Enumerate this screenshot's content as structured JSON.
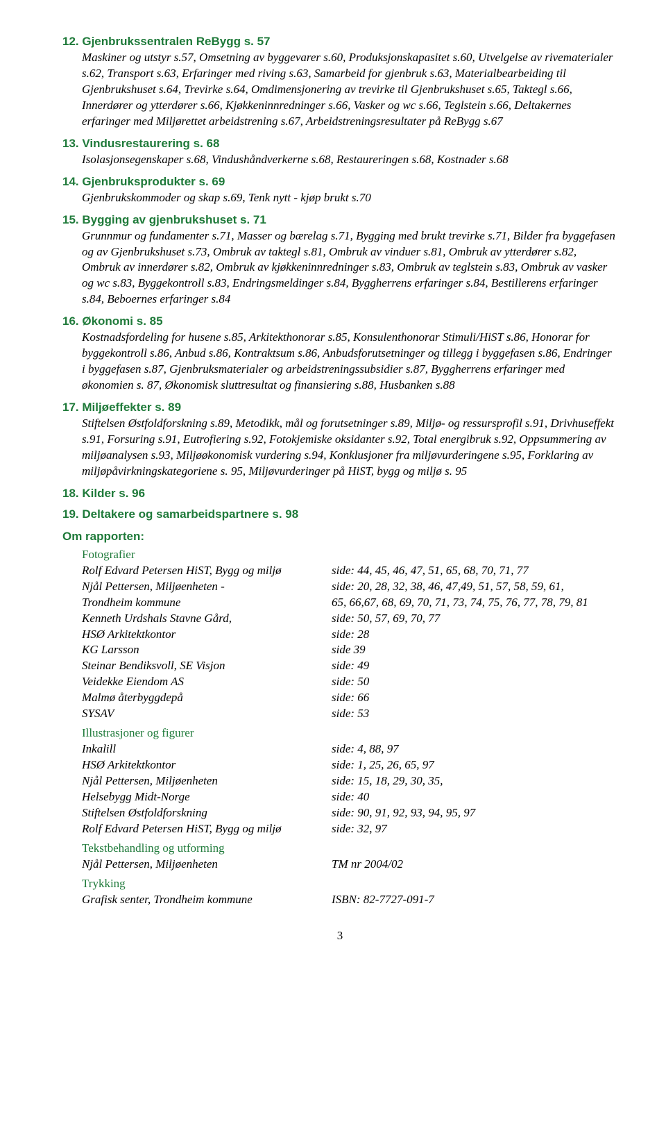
{
  "sections": [
    {
      "heading": "12. Gjenbrukssentralen ReBygg s. 57",
      "body": "Maskiner og utstyr s.57, Omsetning av byggevarer s.60, Produksjonskapasitet s.60, Utvelgelse av rivematerialer s.62, Transport s.63, Erfaringer med riving s.63, Samarbeid for gjenbruk s.63, Materialbearbeiding til Gjenbrukshuset s.64, Trevirke s.64, Omdimensjonering av trevirke til Gjenbrukshuset s.65, Taktegl s.66, Innerdører og ytterdører s.66, Kjøkken­innredninger s.66, Vasker og wc s.66, Teglstein s.66, Deltakernes erfaringer med Miljørettet arbeidstrening s.67, Arbeidstreningsresultater på ReBygg s.67"
    },
    {
      "heading": "13. Vindusrestaurering s. 68",
      "body": "Isolasjonsegenskaper s.68, Vindushåndverkerne s.68, Restaureringen s.68, Kostnader s.68"
    },
    {
      "heading": "14. Gjenbruksprodukter s. 69",
      "body": "Gjenbrukskommoder og skap s.69, Tenk nytt - kjøp brukt s.70"
    },
    {
      "heading": "15. Bygging av gjenbrukshuset s. 71",
      "body": "Grunnmur og fundamenter s.71, Masser og bærelag s.71, Bygging med brukt trevirke s.71, Bilder fra byggefasen og av Gjenbrukshuset s.73, Ombruk av taktegl s.81, Ombruk av vinduer s.81, Ombruk av ytterdører s.82, Ombruk av innerdører s.82, Ombruk av kjøkkeninnredninger s.83, Ombruk av teglstein s.83, Ombruk av vasker og wc s.83, Byggekontroll s.83, Endringsmeldinger s.84, Byggherrens erfaringer s.84, Bestillerens erfaringer s.84,  Beboernes erfaringer s.84"
    },
    {
      "heading": "16. Økonomi s. 85",
      "body": "Kostnadsfordeling for husene s.85, Arkitekthonorar s.85, Konsulenthonorar Stimuli/HiST s.86, Honorar for byggekontroll s.86, Anbud s.86, Kontraktsum s.86, Anbudsforutsetninger og tillegg i byggefasen s.86, Endringer i byggefasen s.87, Gjenbruksmaterialer og arbeids­treningssubsidier s.87, Byggherrens erfaringer med økonomien s. 87, Økonomisk sluttresultat og finansiering s.88, Husbanken s.88"
    },
    {
      "heading": "17. Miljøeffekter s. 89",
      "body": "Stiftelsen Østfoldforskning s.89, Metodikk, mål og forutsetninger s.89, Miljø- og ressursprofil s.91, Drivhuseffekt s.91, Forsuring s.91, Eutrofiering s.92, Fotokjemiske oksidanter s.92, Total energibruk s.92, Oppsummering av miljøanalysen s.93, Miljøøkonomisk vurdering s.94, Konklusjoner fra miljøvurderingene s.95, Forklaring av miljøpåvirkningskategoriene s. 95, Miljøvurderinger på HiST, bygg og miljø s. 95"
    },
    {
      "heading": "18. Kilder s. 96",
      "body": ""
    },
    {
      "heading": "19. Deltakere og  samarbeidspartnere s. 98",
      "body": ""
    }
  ],
  "about_heading": "Om rapporten:",
  "photo_label": "Fotografier",
  "photos": [
    {
      "left": "Rolf Edvard Petersen HiST, Bygg og miljø",
      "right": "side: 44, 45, 46, 47, 51, 65, 68, 70, 71, 77"
    },
    {
      "left": "Njål Pettersen, Miljøenheten -",
      "right": "side: 20, 28, 32, 38, 46, 47,49, 51, 57, 58, 59, 61,"
    },
    {
      "left": "Trondheim kommune",
      "right": "  65, 66,67, 68, 69, 70, 71, 73, 74, 75, 76, 77, 78, 79, 81"
    },
    {
      "left": "Kenneth Urdshals Stavne Gård,",
      "right": "side: 50, 57, 69, 70, 77"
    },
    {
      "left": "HSØ Arkitektkontor",
      "right": "side: 28"
    },
    {
      "left": "KG Larsson",
      "right": "side 39"
    },
    {
      "left": "Steinar Bendiksvoll, SE Visjon",
      "right": "side: 49"
    },
    {
      "left": "Veidekke Eiendom AS",
      "right": "side: 50"
    },
    {
      "left": "Malmø återbyggdepå",
      "right": "side: 66"
    },
    {
      "left": "SYSAV",
      "right": "side: 53"
    }
  ],
  "illus_label": "Illustrasjoner og figurer",
  "illus": [
    {
      "left": "Inkalill",
      "right": "side: 4, 88, 97"
    },
    {
      "left": "HSØ Arkitektkontor",
      "right": "side: 1, 25, 26, 65, 97"
    },
    {
      "left": "Njål Pettersen, Miljøenheten",
      "right": "side: 15, 18, 29, 30, 35,"
    },
    {
      "left": "Helsebygg Midt-Norge",
      "right": "side: 40"
    },
    {
      "left": "Stiftelsen Østfoldforskning",
      "right": "side:  90, 91, 92, 93, 94, 95, 97"
    },
    {
      "left": "Rolf Edvard Petersen HiST, Bygg og miljø",
      "right": "side: 32, 97"
    }
  ],
  "text_label": "Tekstbehandling og utforming",
  "text_rows": [
    {
      "left": "Njål Pettersen, Miljøenheten",
      "right": " TM nr 2004/02"
    }
  ],
  "print_label": "Trykking",
  "print_rows": [
    {
      "left": " Grafisk senter, Trondheim kommune",
      "right": "ISBN: 82-7727-091-7"
    }
  ],
  "page_number": "3",
  "colors": {
    "heading": "#1f7a3a",
    "body": "#000000",
    "background": "#ffffff"
  }
}
